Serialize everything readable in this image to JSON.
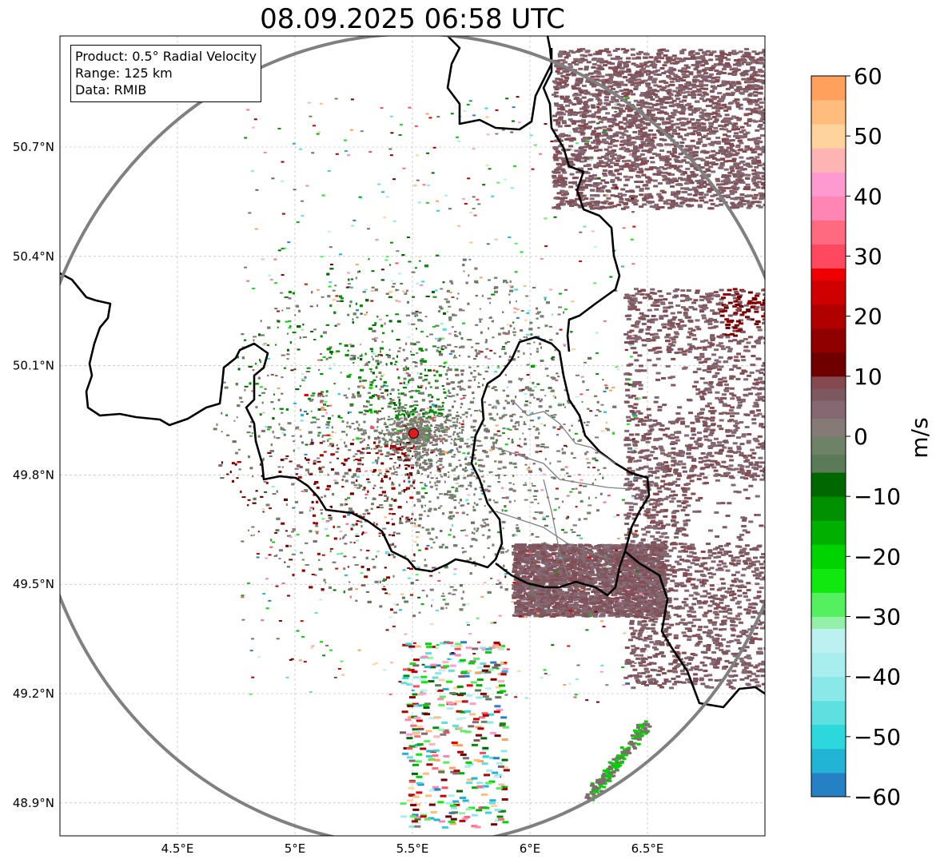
{
  "title": "08.09.2025 06:58 UTC",
  "info_box": {
    "product": "Product: 0.5° Radial Velocity",
    "range": "Range: 125 km",
    "data": "Data: RMIB"
  },
  "map": {
    "extent_lon": [
      4.0,
      7.0
    ],
    "extent_lat": [
      48.8,
      51.0
    ],
    "x_ticks": [
      {
        "lon": 4.5,
        "label": "4.5°E"
      },
      {
        "lon": 5.0,
        "label": "5°E"
      },
      {
        "lon": 5.5,
        "label": "5.5°E"
      },
      {
        "lon": 6.0,
        "label": "6°E"
      },
      {
        "lon": 6.5,
        "label": "6.5°E"
      }
    ],
    "y_ticks": [
      {
        "lat": 50.7,
        "label": "50.7°N"
      },
      {
        "lat": 50.4,
        "label": "50.4°N"
      },
      {
        "lat": 50.1,
        "label": "50.1°N"
      },
      {
        "lat": 49.8,
        "label": "49.8°N"
      },
      {
        "lat": 49.5,
        "label": "49.5°N"
      },
      {
        "lat": 49.2,
        "label": "49.2°N"
      },
      {
        "lat": 48.9,
        "label": "48.9°N"
      }
    ],
    "gridlines": true,
    "radar_site": {
      "lon": 5.505,
      "lat": 49.914,
      "color": "#e31a1c"
    },
    "range_ring_color": "#808080",
    "border_color": "#000000",
    "admin_border_color": "#808080"
  },
  "colorbar": {
    "label": "m/s",
    "vmin": -60,
    "vmax": 60,
    "ticks": [
      {
        "value": 60,
        "label": "60"
      },
      {
        "value": 50,
        "label": "50"
      },
      {
        "value": 40,
        "label": "40"
      },
      {
        "value": 30,
        "label": "30"
      },
      {
        "value": 20,
        "label": "20"
      },
      {
        "value": 10,
        "label": "10"
      },
      {
        "value": 0,
        "label": "0"
      },
      {
        "value": -10,
        "label": "−10"
      },
      {
        "value": -20,
        "label": "−20"
      },
      {
        "value": -30,
        "label": "−30"
      },
      {
        "value": -40,
        "label": "−40"
      },
      {
        "value": -50,
        "label": "−50"
      },
      {
        "value": -60,
        "label": "−60"
      }
    ],
    "colors": [
      {
        "from": -60,
        "to": -56,
        "color": "#2680c4"
      },
      {
        "from": -56,
        "to": -52,
        "color": "#22b4d4"
      },
      {
        "from": -52,
        "to": -48,
        "color": "#2cd8dc"
      },
      {
        "from": -48,
        "to": -44,
        "color": "#5ee0e0"
      },
      {
        "from": -44,
        "to": -40,
        "color": "#8ae8e8"
      },
      {
        "from": -40,
        "to": -36,
        "color": "#a8eeee"
      },
      {
        "from": -36,
        "to": -32,
        "color": "#bdf0f0"
      },
      {
        "from": -32,
        "to": -30,
        "color": "#94f0a8"
      },
      {
        "from": -30,
        "to": -26,
        "color": "#54f060"
      },
      {
        "from": -26,
        "to": -22,
        "color": "#10e810"
      },
      {
        "from": -22,
        "to": -18,
        "color": "#00d400"
      },
      {
        "from": -18,
        "to": -14,
        "color": "#00b000"
      },
      {
        "from": -14,
        "to": -10,
        "color": "#009000"
      },
      {
        "from": -10,
        "to": -6,
        "color": "#006800"
      },
      {
        "from": -6,
        "to": -3,
        "color": "#5a7a58"
      },
      {
        "from": -3,
        "to": 0,
        "color": "#6e8268"
      },
      {
        "from": 0,
        "to": 3,
        "color": "#857a76"
      },
      {
        "from": 3,
        "to": 6,
        "color": "#856872"
      },
      {
        "from": 6,
        "to": 8,
        "color": "#7e5860"
      },
      {
        "from": 8,
        "to": 10,
        "color": "#854a50"
      },
      {
        "from": 10,
        "to": 14,
        "color": "#700000"
      },
      {
        "from": 14,
        "to": 18,
        "color": "#900000"
      },
      {
        "from": 18,
        "to": 22,
        "color": "#b00000"
      },
      {
        "from": 22,
        "to": 26,
        "color": "#d00000"
      },
      {
        "from": 26,
        "to": 28,
        "color": "#f00000"
      },
      {
        "from": 28,
        "to": 32,
        "color": "#ff4860"
      },
      {
        "from": 32,
        "to": 36,
        "color": "#ff6a80"
      },
      {
        "from": 36,
        "to": 40,
        "color": "#ff86b4"
      },
      {
        "from": 40,
        "to": 44,
        "color": "#ff9ad0"
      },
      {
        "from": 44,
        "to": 48,
        "color": "#ffb4b4"
      },
      {
        "from": 48,
        "to": 52,
        "color": "#ffd49c"
      },
      {
        "from": 52,
        "to": 56,
        "color": "#ffbc7c"
      },
      {
        "from": 56,
        "to": 60,
        "color": "#ffa05c"
      }
    ]
  }
}
